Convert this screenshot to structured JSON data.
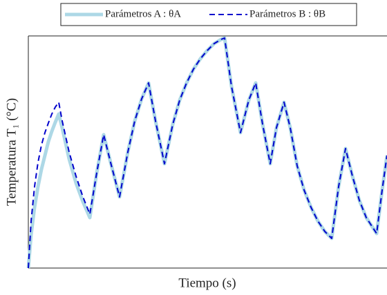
{
  "chart_data": {
    "type": "line",
    "xlabel": "Tiempo (s)",
    "ylabel": "Temperatura T₁ (°C)",
    "x": [
      0,
      4,
      9,
      14,
      19,
      24,
      29,
      34,
      39,
      44,
      49,
      59,
      69,
      79,
      89,
      99,
      109,
      119,
      132,
      144,
      154,
      164,
      174,
      184,
      197,
      209,
      219,
      229,
      239,
      249,
      259,
      269,
      279,
      284,
      294,
      307,
      319,
      329,
      339,
      350,
      359,
      370,
      379,
      389,
      399,
      409,
      419,
      429,
      439,
      449,
      459,
      469,
      479,
      489,
      504,
      512,
      519
    ],
    "series": [
      {
        "name": "Parámetros A : θA",
        "color": "#add8e6",
        "dash": false,
        "values": [
          0,
          48,
          88,
          118,
          143,
          163,
          183,
          198,
          211,
          223,
          203,
          158,
          123,
          96,
          73,
          138,
          193,
          153,
          103,
          168,
          213,
          245,
          268,
          213,
          151,
          208,
          243,
          268,
          288,
          303,
          315,
          325,
          331,
          333,
          263,
          196,
          243,
          268,
          208,
          151,
          203,
          240,
          203,
          148,
          113,
          88,
          68,
          53,
          43,
          118,
          173,
          133,
          98,
          73,
          50,
          113,
          163
        ]
      },
      {
        "name": "Parámetros B : θB",
        "color": "#0000cc",
        "dash": true,
        "values": [
          0,
          68,
          118,
          153,
          178,
          196,
          210,
          223,
          233,
          240,
          213,
          168,
          133,
          103,
          78,
          138,
          193,
          153,
          103,
          168,
          213,
          245,
          268,
          213,
          151,
          208,
          243,
          268,
          288,
          303,
          315,
          325,
          331,
          333,
          263,
          196,
          243,
          268,
          208,
          151,
          203,
          240,
          203,
          148,
          113,
          88,
          68,
          53,
          43,
          118,
          173,
          133,
          98,
          73,
          50,
          113,
          163
        ]
      }
    ],
    "xlim": [
      0,
      519
    ],
    "ylim": [
      0,
      336
    ],
    "legend": "top"
  }
}
